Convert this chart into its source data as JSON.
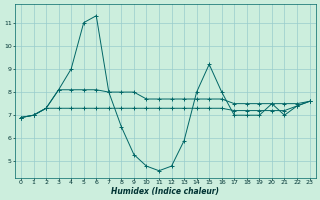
{
  "xlabel": "Humidex (Indice chaleur)",
  "background_color": "#cceedd",
  "grid_color": "#99cccc",
  "line_color": "#006666",
  "x": [
    0,
    1,
    2,
    3,
    4,
    5,
    6,
    7,
    8,
    9,
    10,
    11,
    12,
    13,
    14,
    15,
    16,
    17,
    18,
    19,
    20,
    21,
    22,
    23
  ],
  "line1": [
    6.9,
    7.0,
    7.3,
    8.1,
    9.0,
    11.0,
    11.3,
    8.0,
    6.5,
    5.3,
    4.8,
    4.6,
    4.8,
    5.9,
    8.0,
    9.2,
    8.0,
    7.0,
    7.0,
    7.0,
    7.5,
    7.0,
    7.4,
    7.6
  ],
  "line2": [
    6.9,
    7.0,
    7.3,
    8.1,
    8.1,
    8.1,
    8.1,
    8.0,
    8.0,
    8.0,
    7.7,
    7.7,
    7.7,
    7.7,
    7.7,
    7.7,
    7.7,
    7.5,
    7.5,
    7.5,
    7.5,
    7.5,
    7.5,
    7.6
  ],
  "line3": [
    6.9,
    7.0,
    7.3,
    7.3,
    7.3,
    7.3,
    7.3,
    7.3,
    7.3,
    7.3,
    7.3,
    7.3,
    7.3,
    7.3,
    7.3,
    7.3,
    7.3,
    7.2,
    7.2,
    7.2,
    7.2,
    7.2,
    7.4,
    7.6
  ],
  "ylim": [
    4.3,
    11.8
  ],
  "xlim": [
    -0.5,
    23.5
  ],
  "yticks": [
    5,
    6,
    7,
    8,
    9,
    10,
    11
  ],
  "xticks": [
    0,
    1,
    2,
    3,
    4,
    5,
    6,
    7,
    8,
    9,
    10,
    11,
    12,
    13,
    14,
    15,
    16,
    17,
    18,
    19,
    20,
    21,
    22,
    23
  ],
  "xlabel_fontsize": 5.5,
  "tick_fontsize": 4.5,
  "linewidth": 0.7,
  "markersize": 2.5,
  "markeredgewidth": 0.7
}
